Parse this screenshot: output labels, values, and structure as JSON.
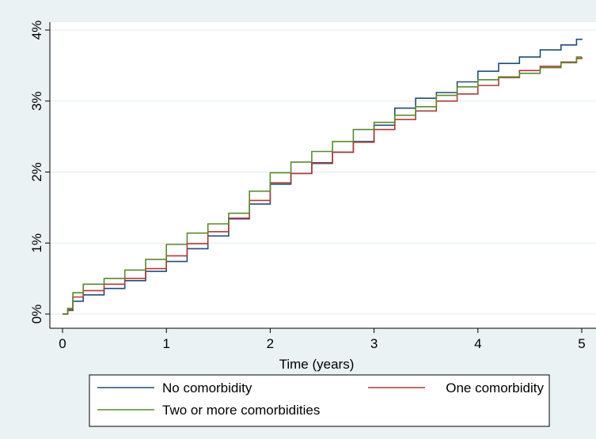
{
  "chart_data": {
    "type": "line",
    "title": "",
    "xlabel": "Time (years)",
    "ylabel": "",
    "xlim": [
      0,
      5
    ],
    "ylim": [
      0,
      4
    ],
    "x_ticks": [
      0,
      1,
      2,
      3,
      4,
      5
    ],
    "x_tick_labels": [
      "0",
      "1",
      "2",
      "3",
      "4",
      "5"
    ],
    "y_ticks": [
      0,
      1,
      2,
      3,
      4
    ],
    "y_tick_labels": [
      "0%",
      "1%",
      "2%",
      "3%",
      "4%"
    ],
    "grid": "horizontal",
    "legend_position": "bottom",
    "series": [
      {
        "name": "No comorbidity",
        "color": "#1f4e79",
        "points": [
          [
            0,
            0
          ],
          [
            0.05,
            0.05
          ],
          [
            0.1,
            0.18
          ],
          [
            0.2,
            0.27
          ],
          [
            0.4,
            0.36
          ],
          [
            0.6,
            0.47
          ],
          [
            0.8,
            0.6
          ],
          [
            1.0,
            0.74
          ],
          [
            1.2,
            0.92
          ],
          [
            1.4,
            1.1
          ],
          [
            1.6,
            1.34
          ],
          [
            1.8,
            1.55
          ],
          [
            2.0,
            1.83
          ],
          [
            2.2,
            1.98
          ],
          [
            2.4,
            2.13
          ],
          [
            2.6,
            2.28
          ],
          [
            2.8,
            2.43
          ],
          [
            3.0,
            2.66
          ],
          [
            3.2,
            2.9
          ],
          [
            3.4,
            3.04
          ],
          [
            3.6,
            3.12
          ],
          [
            3.8,
            3.27
          ],
          [
            4.0,
            3.42
          ],
          [
            4.2,
            3.53
          ],
          [
            4.4,
            3.62
          ],
          [
            4.6,
            3.72
          ],
          [
            4.8,
            3.79
          ],
          [
            4.95,
            3.87
          ],
          [
            5.0,
            3.88
          ]
        ]
      },
      {
        "name": "One comorbidity",
        "color": "#b03a3a",
        "points": [
          [
            0,
            0
          ],
          [
            0.05,
            0.06
          ],
          [
            0.1,
            0.24
          ],
          [
            0.2,
            0.33
          ],
          [
            0.4,
            0.42
          ],
          [
            0.6,
            0.5
          ],
          [
            0.8,
            0.64
          ],
          [
            1.0,
            0.82
          ],
          [
            1.2,
            0.99
          ],
          [
            1.4,
            1.16
          ],
          [
            1.6,
            1.35
          ],
          [
            1.8,
            1.6
          ],
          [
            2.0,
            1.85
          ],
          [
            2.2,
            1.98
          ],
          [
            2.4,
            2.12
          ],
          [
            2.6,
            2.28
          ],
          [
            2.8,
            2.42
          ],
          [
            3.0,
            2.6
          ],
          [
            3.2,
            2.74
          ],
          [
            3.4,
            2.86
          ],
          [
            3.6,
            3.0
          ],
          [
            3.8,
            3.1
          ],
          [
            4.0,
            3.22
          ],
          [
            4.2,
            3.33
          ],
          [
            4.4,
            3.43
          ],
          [
            4.6,
            3.49
          ],
          [
            4.8,
            3.55
          ],
          [
            4.95,
            3.6
          ],
          [
            5.0,
            3.62
          ]
        ]
      },
      {
        "name": "Two or more comorbidities",
        "color": "#5a8a2a",
        "points": [
          [
            0,
            0
          ],
          [
            0.05,
            0.08
          ],
          [
            0.1,
            0.3
          ],
          [
            0.2,
            0.42
          ],
          [
            0.4,
            0.5
          ],
          [
            0.6,
            0.62
          ],
          [
            0.8,
            0.77
          ],
          [
            1.0,
            0.98
          ],
          [
            1.2,
            1.14
          ],
          [
            1.4,
            1.27
          ],
          [
            1.6,
            1.42
          ],
          [
            1.8,
            1.73
          ],
          [
            2.0,
            1.99
          ],
          [
            2.2,
            2.14
          ],
          [
            2.4,
            2.29
          ],
          [
            2.6,
            2.43
          ],
          [
            2.8,
            2.6
          ],
          [
            3.0,
            2.7
          ],
          [
            3.2,
            2.8
          ],
          [
            3.4,
            2.92
          ],
          [
            3.6,
            3.08
          ],
          [
            3.8,
            3.2
          ],
          [
            4.0,
            3.3
          ],
          [
            4.2,
            3.34
          ],
          [
            4.4,
            3.39
          ],
          [
            4.6,
            3.47
          ],
          [
            4.8,
            3.54
          ],
          [
            4.95,
            3.62
          ],
          [
            5.0,
            3.62
          ]
        ]
      }
    ]
  }
}
